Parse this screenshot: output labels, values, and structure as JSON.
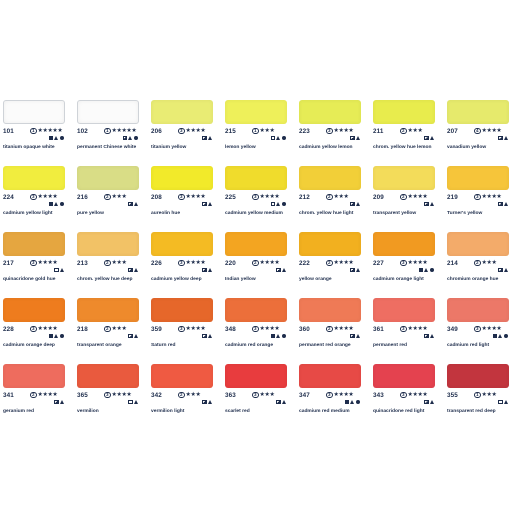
{
  "colors": {
    "text": "#1e2d4c"
  },
  "chart_data": {
    "type": "table",
    "columns": 7,
    "rows": 5,
    "swatches": [
      {
        "number": "101",
        "group": "1",
        "stars": "★★★★★",
        "props": [
          "opaque",
          "stain",
          "granul"
        ],
        "name": "titanium opaque white",
        "color": "#fbfbfb",
        "light": true
      },
      {
        "number": "102",
        "group": "1",
        "stars": "★★★★★",
        "props": [
          "semiopaque",
          "stain",
          "granul"
        ],
        "name": "permanent Chinese white",
        "color": "#fbfbfb",
        "light": true
      },
      {
        "number": "206",
        "group": "3",
        "stars": "★★★★",
        "props": [
          "semiopaque",
          "stain"
        ],
        "name": "titanium yellow",
        "color": "#e9ec74"
      },
      {
        "number": "215",
        "group": "1",
        "stars": "★★★",
        "props": [
          "transparent",
          "stain",
          "granul"
        ],
        "name": "lemon yellow",
        "color": "#eef05a"
      },
      {
        "number": "223",
        "group": "3",
        "stars": "★★★★",
        "props": [
          "semiopaque",
          "stain"
        ],
        "name": "cadmium yellow lemon",
        "color": "#e6ec56"
      },
      {
        "number": "211",
        "group": "2",
        "stars": "★★★",
        "props": [
          "semiopaque",
          "stain"
        ],
        "name": "chrom. yellow hue lemon",
        "color": "#e8ec4d"
      },
      {
        "number": "207",
        "group": "4",
        "stars": "★★★★",
        "props": [
          "semiopaque",
          "stain"
        ],
        "name": "vanadium yellow",
        "color": "#e6ea6c"
      },
      {
        "number": "224",
        "group": "3",
        "stars": "★★★★",
        "props": [
          "opaque",
          "stain",
          "granul"
        ],
        "name": "cadmium yellow light",
        "color": "#f1ed3e"
      },
      {
        "number": "216",
        "group": "2",
        "stars": "★★★",
        "props": [
          "semiopaque",
          "stain"
        ],
        "name": "pure yellow",
        "color": "#d9dd86"
      },
      {
        "number": "208",
        "group": "3",
        "stars": "★★★★",
        "props": [
          "semiopaque",
          "stain"
        ],
        "name": "aureolin hue",
        "color": "#f2ea2a"
      },
      {
        "number": "225",
        "group": "3",
        "stars": "★★★★",
        "props": [
          "transparent",
          "stain",
          "granul"
        ],
        "name": "cadmium yellow medium",
        "color": "#f0dc2c"
      },
      {
        "number": "212",
        "group": "2",
        "stars": "★★★",
        "props": [
          "semiopaque",
          "stain"
        ],
        "name": "chrom. yellow hue light",
        "color": "#f2cf38"
      },
      {
        "number": "209",
        "group": "2",
        "stars": "★★★★",
        "props": [
          "semiopaque",
          "stain"
        ],
        "name": "transparent yellow",
        "color": "#f3dc5a"
      },
      {
        "number": "219",
        "group": "3",
        "stars": "★★★★",
        "props": [
          "semiopaque",
          "stain"
        ],
        "name": "Turner's yellow",
        "color": "#f6c53a"
      },
      {
        "number": "217",
        "group": "3",
        "stars": "★★★★",
        "props": [
          "transparent",
          "stain"
        ],
        "name": "quinacridone gold hue",
        "color": "#e5a640"
      },
      {
        "number": "213",
        "group": "2",
        "stars": "★★★",
        "props": [
          "semiopaque",
          "stain"
        ],
        "name": "chrom. yellow hue deep",
        "color": "#f2c266"
      },
      {
        "number": "226",
        "group": "3",
        "stars": "★★★★",
        "props": [
          "semiopaque",
          "stain"
        ],
        "name": "cadmium yellow deep",
        "color": "#f4bb23"
      },
      {
        "number": "220",
        "group": "2",
        "stars": "★★★★",
        "props": [
          "semiopaque",
          "stain"
        ],
        "name": "Indian yellow",
        "color": "#f3a521"
      },
      {
        "number": "222",
        "group": "2",
        "stars": "★★★★",
        "props": [
          "semiopaque",
          "stain"
        ],
        "name": "yellow orange",
        "color": "#f2b01f"
      },
      {
        "number": "227",
        "group": "3",
        "stars": "★★★★",
        "props": [
          "opaque",
          "stain",
          "granul"
        ],
        "name": "cadmium orange light",
        "color": "#f19a21"
      },
      {
        "number": "214",
        "group": "2",
        "stars": "★★★",
        "props": [
          "semiopaque",
          "stain"
        ],
        "name": "chromium orange hue",
        "color": "#f3ab6a"
      },
      {
        "number": "228",
        "group": "3",
        "stars": "★★★★",
        "props": [
          "opaque",
          "stain",
          "granul"
        ],
        "name": "cadmium orange deep",
        "color": "#ee7c1e"
      },
      {
        "number": "218",
        "group": "2",
        "stars": "★★★",
        "props": [
          "semiopaque",
          "stain"
        ],
        "name": "transparent orange",
        "color": "#ee8a2c"
      },
      {
        "number": "359",
        "group": "3",
        "stars": "★★★★",
        "props": [
          "semiopaque",
          "stain"
        ],
        "name": "Saturn red",
        "color": "#e6672a"
      },
      {
        "number": "348",
        "group": "3",
        "stars": "★★★★",
        "props": [
          "opaque",
          "stain",
          "granul"
        ],
        "name": "cadmium red orange",
        "color": "#ec6f3a"
      },
      {
        "number": "360",
        "group": "2",
        "stars": "★★★★",
        "props": [
          "semiopaque",
          "stain"
        ],
        "name": "permanent red orange",
        "color": "#ef7a56"
      },
      {
        "number": "361",
        "group": "3",
        "stars": "★★★★",
        "props": [
          "semiopaque",
          "stain"
        ],
        "name": "permanent red",
        "color": "#ee6e62"
      },
      {
        "number": "349",
        "group": "3",
        "stars": "★★★★",
        "props": [
          "opaque",
          "stain",
          "granul"
        ],
        "name": "cadmium red light",
        "color": "#ec7868"
      },
      {
        "number": "341",
        "group": "2",
        "stars": "★★★★",
        "props": [
          "semiopaque",
          "stain"
        ],
        "name": "geranium red",
        "color": "#ee6c5e"
      },
      {
        "number": "365",
        "group": "3",
        "stars": "★★★★",
        "props": [
          "transparent",
          "stain"
        ],
        "name": "vermilion",
        "color": "#e95a3e"
      },
      {
        "number": "342",
        "group": "2",
        "stars": "★★★",
        "props": [
          "semiopaque",
          "stain"
        ],
        "name": "vermilion light",
        "color": "#ef5a42"
      },
      {
        "number": "363",
        "group": "3",
        "stars": "★★★",
        "props": [
          "semiopaque",
          "stain"
        ],
        "name": "scarlet red",
        "color": "#e83c3e"
      },
      {
        "number": "347",
        "group": "3",
        "stars": "★★★★",
        "props": [
          "opaque",
          "stain",
          "granul"
        ],
        "name": "cadmium red medium",
        "color": "#e74a46"
      },
      {
        "number": "343",
        "group": "3",
        "stars": "★★★★",
        "props": [
          "semiopaque",
          "stain"
        ],
        "name": "quinacridone red light",
        "color": "#e4424f"
      },
      {
        "number": "355",
        "group": "1",
        "stars": "★★★",
        "props": [
          "transparent",
          "stain"
        ],
        "name": "transparent red deep",
        "color": "#c2353e"
      }
    ]
  }
}
